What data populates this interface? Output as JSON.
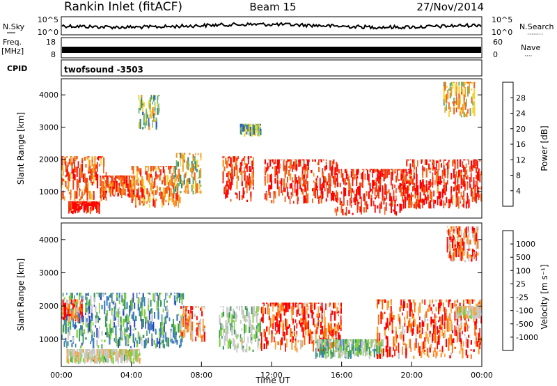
{
  "header": {
    "station": "Rankin Inlet (fitACF)",
    "beam": "Beam 15",
    "date": "27/Nov/2014"
  },
  "strip_panels": {
    "nsky": {
      "left_label": "N.Sky",
      "left_ticks": [
        "10^5",
        "10^0"
      ],
      "right_label": "N.Search",
      "right_ticks": [
        "10^5",
        "10^0"
      ]
    },
    "freq": {
      "left_label_line1": "Freq.",
      "left_label_line2": "[MHz]",
      "left_ticks": [
        "18",
        "8"
      ],
      "right_label": "Nave",
      "right_ticks": [
        "60",
        "0"
      ]
    },
    "cpid": {
      "label": "CPID",
      "value": "twofsound -3503"
    }
  },
  "colors": {
    "power": [
      "#0000ff",
      "#2f5fbf",
      "#3a8a78",
      "#6fb46e",
      "#f3d53a",
      "#f59a22",
      "#f06a1c",
      "#f03a14",
      "#ff0000"
    ],
    "velocity": [
      "#ff0000",
      "#ff6a00",
      "#ffa23a",
      "#c8c8c8",
      "#c8c8c8",
      "#7fcf3f",
      "#3a9a5a",
      "#3f7fbf",
      "#2b3fbf"
    ]
  },
  "chart_data": [
    {
      "type": "heatmap",
      "title": "",
      "parameter": "Power",
      "xlabel": "",
      "ylabel": "Slant Range [km]",
      "xlim": [
        "00:00",
        "24:00"
      ],
      "ylim": [
        180,
        4500
      ],
      "yticks": [
        1000,
        2000,
        3000,
        4000
      ],
      "colorbar": {
        "label": "Power [dB]",
        "ticks": [
          "4",
          "8",
          "12",
          "16",
          "20",
          "24",
          "28"
        ],
        "range": [
          0,
          30
        ]
      },
      "regions": [
        {
          "t0": 0.0,
          "t1": 2.6,
          "r0": 700,
          "r1": 2100,
          "level": 0.75
        },
        {
          "t0": 0.4,
          "t1": 2.2,
          "r0": 300,
          "r1": 700,
          "level": 0.92
        },
        {
          "t0": 2.2,
          "t1": 4.2,
          "r0": 800,
          "r1": 1500,
          "level": 0.82
        },
        {
          "t0": 4.0,
          "t1": 6.8,
          "r0": 500,
          "r1": 1800,
          "level": 0.7
        },
        {
          "t0": 6.4,
          "t1": 8.0,
          "r0": 900,
          "r1": 2200,
          "level": 0.5
        },
        {
          "t0": 9.2,
          "t1": 11.0,
          "r0": 650,
          "r1": 2100,
          "level": 0.85
        },
        {
          "t0": 11.6,
          "t1": 15.8,
          "r0": 600,
          "r1": 2000,
          "level": 0.88
        },
        {
          "t0": 15.6,
          "t1": 20.0,
          "r0": 250,
          "r1": 1700,
          "level": 0.9
        },
        {
          "t0": 19.6,
          "t1": 24.0,
          "r0": 450,
          "r1": 2000,
          "level": 0.88
        },
        {
          "t0": 21.8,
          "t1": 23.6,
          "r0": 3300,
          "r1": 4400,
          "level": 0.6
        },
        {
          "t0": 4.4,
          "t1": 5.6,
          "r0": 2900,
          "r1": 4000,
          "level": 0.4
        },
        {
          "t0": 10.2,
          "t1": 11.4,
          "r0": 2700,
          "r1": 3100,
          "level": 0.35
        }
      ]
    },
    {
      "type": "heatmap",
      "title": "",
      "parameter": "Velocity",
      "xlabel": "Time UT",
      "ylabel": "Slant Range [km]",
      "xlim": [
        "00:00",
        "24:00"
      ],
      "xticks": [
        "00:00",
        "04:00",
        "08:00",
        "12:00",
        "16:00",
        "20:00",
        "00:00"
      ],
      "ylim": [
        180,
        4500
      ],
      "yticks": [
        1000,
        2000,
        3000,
        4000
      ],
      "colorbar": {
        "label": "Velocity [m s⁻¹]",
        "ticks": [
          "1000",
          "500",
          "100",
          "25",
          "-25",
          "-100",
          "-500",
          "-1000"
        ],
        "range": [
          -1200,
          1200
        ]
      },
      "regions": [
        {
          "t0": 0.0,
          "t1": 7.0,
          "r0": 700,
          "r1": 2400,
          "level": 0.72
        },
        {
          "t0": 0.3,
          "t1": 4.5,
          "r0": 250,
          "r1": 700,
          "level": 0.45
        },
        {
          "t0": 0.0,
          "t1": 1.2,
          "r0": 1500,
          "r1": 2200,
          "level": 0.2
        },
        {
          "t0": 6.8,
          "t1": 8.2,
          "r0": 900,
          "r1": 2000,
          "level": 0.25
        },
        {
          "t0": 9.0,
          "t1": 11.4,
          "r0": 600,
          "r1": 2000,
          "level": 0.55
        },
        {
          "t0": 11.4,
          "t1": 16.0,
          "r0": 600,
          "r1": 2100,
          "level": 0.12
        },
        {
          "t0": 14.5,
          "t1": 18.4,
          "r0": 400,
          "r1": 1000,
          "level": 0.62
        },
        {
          "t0": 18.0,
          "t1": 24.0,
          "r0": 400,
          "r1": 2200,
          "level": 0.15
        },
        {
          "t0": 22.0,
          "t1": 23.8,
          "r0": 3300,
          "r1": 4400,
          "level": 0.2
        },
        {
          "t0": 22.5,
          "t1": 24.0,
          "r0": 1600,
          "r1": 2000,
          "level": 0.4
        }
      ]
    }
  ]
}
